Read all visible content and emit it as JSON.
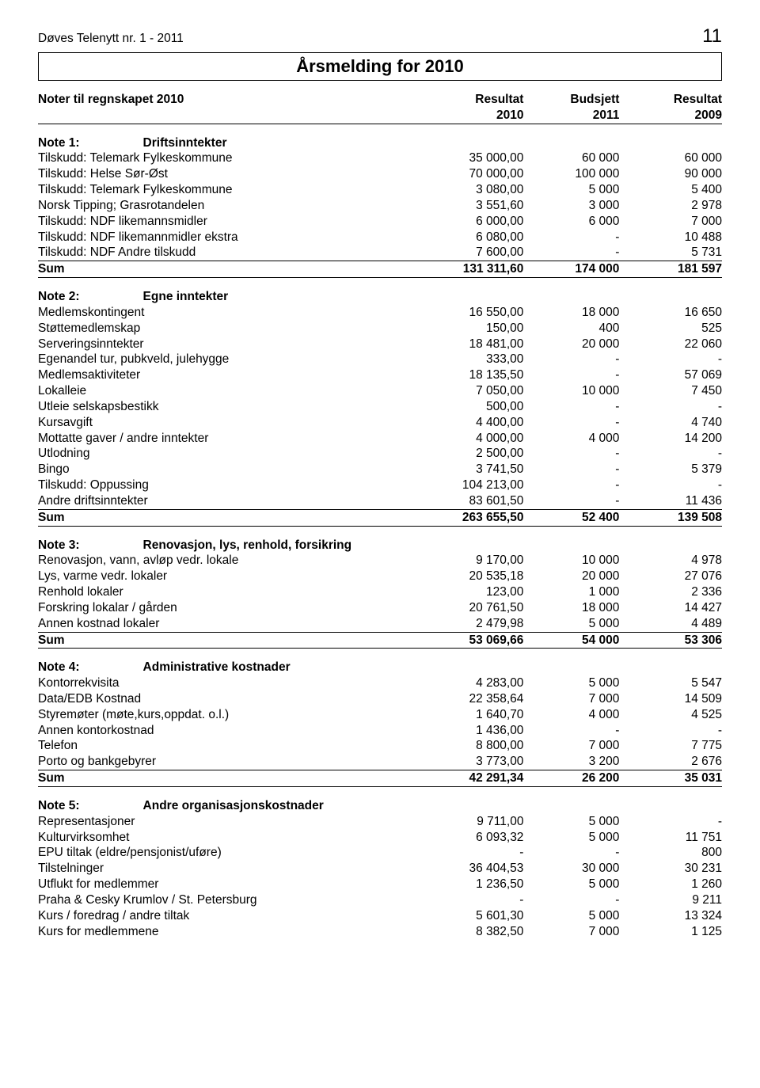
{
  "header": {
    "publication": "Døves Telenytt nr. 1 - 2011",
    "page_number": "11",
    "banner_title": "Årsmelding for 2010"
  },
  "table_heading": {
    "title": "Noter til regnskapet 2010",
    "c1a": "Resultat",
    "c2a": "Budsjett",
    "c3a": "Resultat",
    "c1b": "2010",
    "c2b": "2011",
    "c3b": "2009"
  },
  "sections": [
    {
      "note_prefix": "Note 1:",
      "note_title": "Driftsinntekter",
      "rows": [
        {
          "label": "Tilskudd: Telemark Fylkeskommune",
          "v1": "35 000,00",
          "v2": "60 000",
          "v3": "60 000"
        },
        {
          "label": "Tilskudd: Helse Sør-Øst",
          "v1": "70 000,00",
          "v2": "100 000",
          "v3": "90 000"
        },
        {
          "label": "Tilskudd: Telemark Fylkeskommune",
          "v1": "3 080,00",
          "v2": "5 000",
          "v3": "5 400"
        },
        {
          "label": "Norsk Tipping; Grasrotandelen",
          "v1": "3 551,60",
          "v2": "3 000",
          "v3": "2 978"
        },
        {
          "label": "Tilskudd: NDF likemannsmidler",
          "v1": "6 000,00",
          "v2": "6 000",
          "v3": "7 000"
        },
        {
          "label": "Tilskudd: NDF likemannmidler ekstra",
          "v1": "6 080,00",
          "v2": "-",
          "v3": "10 488"
        },
        {
          "label": "Tilskudd: NDF Andre tilskudd",
          "v1": "7 600,00",
          "v2": "-",
          "v3": "5 731",
          "underline": true
        }
      ],
      "sum": {
        "label": "Sum",
        "v1": "131 311,60",
        "v2": "174 000",
        "v3": "181 597"
      }
    },
    {
      "note_prefix": "Note 2:",
      "note_title": "Egne inntekter",
      "rows": [
        {
          "label": "Medlemskontingent",
          "v1": "16 550,00",
          "v2": "18 000",
          "v3": "16 650"
        },
        {
          "label": "Støttemedlemskap",
          "v1": "150,00",
          "v2": "400",
          "v3": "525"
        },
        {
          "label": "Serveringsinntekter",
          "v1": "18 481,00",
          "v2": "20 000",
          "v3": "22 060"
        },
        {
          "label": "Egenandel tur, pubkveld, julehygge",
          "v1": "333,00",
          "v2": "-",
          "v3": "-"
        },
        {
          "label": "Medlemsaktiviteter",
          "v1": "18 135,50",
          "v2": "-",
          "v3": "57 069"
        },
        {
          "label": "Lokalleie",
          "v1": "7 050,00",
          "v2": "10 000",
          "v3": "7 450"
        },
        {
          "label": "Utleie selskapsbestikk",
          "v1": "500,00",
          "v2": "-",
          "v3": "-"
        },
        {
          "label": "Kursavgift",
          "v1": "4 400,00",
          "v2": "-",
          "v3": "4 740"
        },
        {
          "label": "Mottatte gaver / andre inntekter",
          "v1": "4 000,00",
          "v2": "4 000",
          "v3": "14 200"
        },
        {
          "label": "Utlodning",
          "v1": "2 500,00",
          "v2": "-",
          "v3": "-"
        },
        {
          "label": "Bingo",
          "v1": "3 741,50",
          "v2": "-",
          "v3": "5 379"
        },
        {
          "label": "Tilskudd: Oppussing",
          "v1": "104 213,00",
          "v2": "-",
          "v3": "-"
        },
        {
          "label": "Andre driftsinntekter",
          "v1": "83 601,50",
          "v2": "-",
          "v3": "11 436",
          "underline": true
        }
      ],
      "sum": {
        "label": "Sum",
        "v1": "263 655,50",
        "v2": "52 400",
        "v3": "139 508"
      }
    },
    {
      "note_prefix": "Note 3:",
      "note_title": "Renovasjon, lys, renhold, forsikring",
      "rows": [
        {
          "label": "Renovasjon, vann, avløp vedr. lokale",
          "v1": "9 170,00",
          "v2": "10 000",
          "v3": "4 978"
        },
        {
          "label": "Lys, varme vedr. lokaler",
          "v1": "20 535,18",
          "v2": "20 000",
          "v3": "27 076"
        },
        {
          "label": "Renhold lokaler",
          "v1": "123,00",
          "v2": "1 000",
          "v3": "2 336"
        },
        {
          "label": "Forskring lokalar / gården",
          "v1": "20 761,50",
          "v2": "18 000",
          "v3": "14 427"
        },
        {
          "label": "Annen kostnad lokaler",
          "v1": "2 479,98",
          "v2": "5 000",
          "v3": "4 489",
          "underline": true
        }
      ],
      "sum": {
        "label": "Sum",
        "v1": "53 069,66",
        "v2": "54 000",
        "v3": "53 306"
      }
    },
    {
      "note_prefix": "Note 4:",
      "note_title": "Administrative kostnader",
      "rows": [
        {
          "label": "Kontorrekvisita",
          "v1": "4 283,00",
          "v2": "5 000",
          "v3": "5 547"
        },
        {
          "label": "Data/EDB Kostnad",
          "v1": "22 358,64",
          "v2": "7 000",
          "v3": "14 509"
        },
        {
          "label": "Styremøter (møte,kurs,oppdat. o.l.)",
          "v1": "1 640,70",
          "v2": "4 000",
          "v3": "4 525"
        },
        {
          "label": "Annen kontorkostnad",
          "v1": "1 436,00",
          "v2": "-",
          "v3": "-"
        },
        {
          "label": "Telefon",
          "v1": "8 800,00",
          "v2": "7 000",
          "v3": "7 775"
        },
        {
          "label": "Porto og bankgebyrer",
          "v1": "3 773,00",
          "v2": "3 200",
          "v3": "2 676",
          "underline": true
        }
      ],
      "sum": {
        "label": "Sum",
        "v1": "42 291,34",
        "v2": "26 200",
        "v3": "35 031"
      }
    },
    {
      "note_prefix": "Note 5:",
      "note_title": "Andre organisasjonskostnader",
      "rows": [
        {
          "label": "Representasjoner",
          "v1": "9 711,00",
          "v2": "5 000",
          "v3": "-"
        },
        {
          "label": "Kulturvirksomhet",
          "v1": "6 093,32",
          "v2": "5 000",
          "v3": "11 751"
        },
        {
          "label": "EPU tiltak (eldre/pensjonist/uføre)",
          "v1": "-",
          "v2": "-",
          "v3": "800"
        },
        {
          "label": "Tilstelninger",
          "v1": "36 404,53",
          "v2": "30 000",
          "v3": "30 231"
        },
        {
          "label": "Utflukt for medlemmer",
          "v1": "1 236,50",
          "v2": "5 000",
          "v3": "1 260"
        },
        {
          "label": "Praha & Cesky Krumlov / St. Petersburg",
          "v1": "-",
          "v2": "-",
          "v3": "9 211"
        },
        {
          "label": "Kurs / foredrag / andre tiltak",
          "v1": "5 601,30",
          "v2": "5 000",
          "v3": "13 324"
        },
        {
          "label": "Kurs for medlemmene",
          "v1": "8 382,50",
          "v2": "7 000",
          "v3": "1 125"
        }
      ]
    }
  ]
}
